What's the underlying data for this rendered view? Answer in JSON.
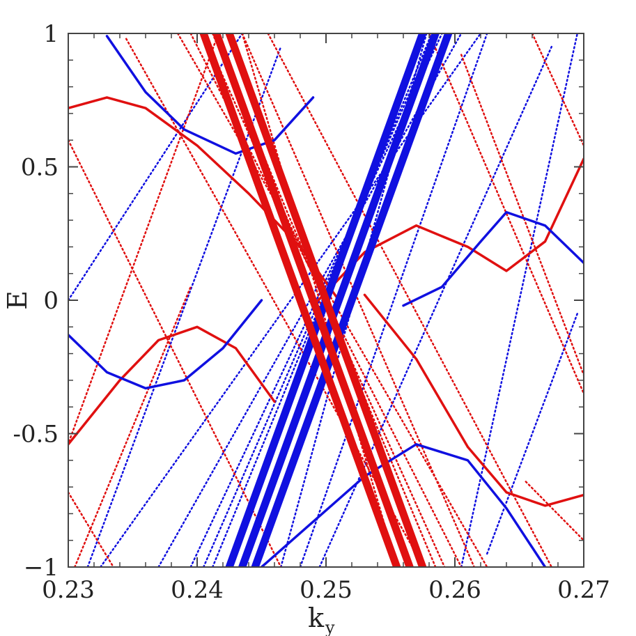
{
  "chart_data": {
    "type": "line",
    "title": "",
    "xlabel": "k",
    "xlabel_sub": "y",
    "ylabel": "E",
    "xlim": [
      0.23,
      0.27
    ],
    "ylim": [
      -1,
      1
    ],
    "x_ticks": [
      0.23,
      0.24,
      0.25,
      0.26,
      0.27
    ],
    "x_tick_labels": [
      "0.23",
      "0.24",
      "0.25",
      "0.26",
      "0.27"
    ],
    "y_ticks": [
      -1,
      -0.5,
      0,
      0.5,
      1
    ],
    "y_tick_labels": [
      "−1",
      "-0.5",
      "0",
      "0.5",
      "1"
    ],
    "grid": false,
    "legend": "none",
    "colors": {
      "red": "#e01010",
      "blue": "#1010e0",
      "axis": "#444444"
    },
    "series": [
      {
        "color": "red",
        "style": "solid",
        "x": [
          0.23,
          0.233,
          0.236,
          0.24,
          0.244,
          0.248,
          0.251
        ],
        "y": [
          0.72,
          0.76,
          0.72,
          0.58,
          0.4,
          0.2,
          0.0
        ]
      },
      {
        "color": "blue",
        "style": "solid",
        "x": [
          0.233,
          0.236,
          0.239,
          0.243,
          0.246,
          0.249
        ],
        "y": [
          0.99,
          0.78,
          0.64,
          0.55,
          0.6,
          0.76
        ]
      },
      {
        "color": "red",
        "style": "solid",
        "x": [
          0.23,
          0.234,
          0.237,
          0.24,
          0.243,
          0.246
        ],
        "y": [
          -0.54,
          -0.3,
          -0.15,
          -0.1,
          -0.18,
          -0.38
        ]
      },
      {
        "color": "blue",
        "style": "solid",
        "x": [
          0.23,
          0.233,
          0.236,
          0.239,
          0.242,
          0.245
        ],
        "y": [
          -0.13,
          -0.27,
          -0.33,
          -0.3,
          -0.18,
          0.0
        ]
      },
      {
        "color": "red",
        "style": "solid",
        "x": [
          0.249,
          0.253,
          0.257,
          0.261,
          0.264,
          0.267,
          0.27
        ],
        "y": [
          -0.02,
          0.18,
          0.28,
          0.2,
          0.11,
          0.22,
          0.53
        ]
      },
      {
        "color": "blue",
        "style": "solid",
        "x": [
          0.256,
          0.259,
          0.262,
          0.264,
          0.267,
          0.27
        ],
        "y": [
          -0.02,
          0.05,
          0.22,
          0.33,
          0.28,
          0.14
        ]
      },
      {
        "color": "blue",
        "style": "solid",
        "x": [
          0.245,
          0.249,
          0.253,
          0.257,
          0.261,
          0.264,
          0.267
        ],
        "y": [
          -1.0,
          -0.83,
          -0.66,
          -0.54,
          -0.6,
          -0.78,
          -1.0
        ]
      },
      {
        "color": "red",
        "style": "solid",
        "x": [
          0.253,
          0.257,
          0.261,
          0.264,
          0.267,
          0.27
        ],
        "y": [
          0.02,
          -0.22,
          -0.55,
          -0.72,
          -0.77,
          -0.73
        ]
      },
      {
        "color": "blue",
        "style": "thick",
        "x": [
          0.2425,
          0.2575
        ],
        "y": [
          -1.0,
          1.0
        ]
      },
      {
        "color": "blue",
        "style": "thick",
        "x": [
          0.2445,
          0.2595
        ],
        "y": [
          -1.0,
          1.0
        ]
      },
      {
        "color": "blue",
        "style": "thick",
        "x": [
          0.2435,
          0.2585
        ],
        "y": [
          -1.0,
          1.0
        ]
      },
      {
        "color": "red",
        "style": "thick",
        "x": [
          0.2425,
          0.2575
        ],
        "y": [
          1.0,
          -1.0
        ]
      },
      {
        "color": "red",
        "style": "thick",
        "x": [
          0.2405,
          0.2555
        ],
        "y": [
          1.0,
          -1.0
        ]
      },
      {
        "color": "red",
        "style": "thick",
        "x": [
          0.2415,
          0.2565
        ],
        "y": [
          1.0,
          -1.0
        ]
      },
      {
        "color": "blue",
        "style": "dotted",
        "x": [
          0.2325,
          0.262
        ],
        "y": [
          -1.0,
          1.0
        ]
      },
      {
        "color": "blue",
        "style": "dotted",
        "x": [
          0.237,
          0.2605
        ],
        "y": [
          -1.0,
          1.0
        ]
      },
      {
        "color": "blue",
        "style": "dotted",
        "x": [
          0.2395,
          0.259
        ],
        "y": [
          -1.0,
          1.0
        ]
      },
      {
        "color": "blue",
        "style": "dotted",
        "x": [
          0.2405,
          0.2585
        ],
        "y": [
          -1.0,
          1.0
        ]
      },
      {
        "color": "blue",
        "style": "dotted",
        "x": [
          0.2412,
          0.2582
        ],
        "y": [
          -1.0,
          1.0
        ]
      },
      {
        "color": "blue",
        "style": "dotted",
        "x": [
          0.2465,
          0.2578
        ],
        "y": [
          -1.0,
          1.0
        ]
      },
      {
        "color": "blue",
        "style": "dotted",
        "x": [
          0.248,
          0.2625
        ],
        "y": [
          -1.0,
          1.0
        ]
      },
      {
        "color": "blue",
        "style": "dotted",
        "x": [
          0.2495,
          0.2675
        ],
        "y": [
          -1.0,
          0.95
        ]
      },
      {
        "color": "blue",
        "style": "dotted",
        "x": [
          0.23,
          0.2435
        ],
        "y": [
          0.0,
          1.0
        ]
      },
      {
        "color": "blue",
        "style": "dotted",
        "x": [
          0.2315,
          0.2465
        ],
        "y": [
          -1.0,
          0.95
        ]
      },
      {
        "color": "blue",
        "style": "dotted",
        "x": [
          0.2605,
          0.2695
        ],
        "y": [
          -1.0,
          1.0
        ]
      },
      {
        "color": "blue",
        "style": "dotted",
        "x": [
          0.2625,
          0.2695
        ],
        "y": [
          -0.95,
          -0.05
        ]
      },
      {
        "color": "red",
        "style": "dotted",
        "x": [
          0.2385,
          0.2625
        ],
        "y": [
          1.0,
          -1.0
        ]
      },
      {
        "color": "red",
        "style": "dotted",
        "x": [
          0.2395,
          0.2605
        ],
        "y": [
          1.0,
          -1.0
        ]
      },
      {
        "color": "red",
        "style": "dotted",
        "x": [
          0.2405,
          0.2592
        ],
        "y": [
          1.0,
          -1.0
        ]
      },
      {
        "color": "red",
        "style": "dotted",
        "x": [
          0.2412,
          0.2585
        ],
        "y": [
          1.0,
          -1.0
        ]
      },
      {
        "color": "red",
        "style": "dotted",
        "x": [
          0.2435,
          0.2555
        ],
        "y": [
          1.0,
          -1.0
        ]
      },
      {
        "color": "red",
        "style": "dotted",
        "x": [
          0.2435,
          0.2615
        ],
        "y": [
          1.0,
          -1.0
        ]
      },
      {
        "color": "red",
        "style": "dotted",
        "x": [
          0.2455,
          0.2675
        ],
        "y": [
          1.0,
          -1.0
        ]
      },
      {
        "color": "red",
        "style": "dotted",
        "x": [
          0.23,
          0.2465
        ],
        "y": [
          0.6,
          -1.0
        ]
      },
      {
        "color": "red",
        "style": "dotted",
        "x": [
          0.23,
          0.2335
        ],
        "y": [
          -0.72,
          -1.0
        ]
      },
      {
        "color": "red",
        "style": "dotted",
        "x": [
          0.2345,
          0.257
        ],
        "y": [
          0.98,
          -0.95
        ]
      },
      {
        "color": "red",
        "style": "dotted",
        "x": [
          0.2265,
          0.2415
        ],
        "y": [
          -1.0,
          0.98
        ]
      },
      {
        "color": "red",
        "style": "dotted",
        "x": [
          0.2305,
          0.2395
        ],
        "y": [
          -1.0,
          0.05
        ]
      },
      {
        "color": "red",
        "style": "dotted",
        "x": [
          0.258,
          0.27
        ],
        "y": [
          1.0,
          -0.35
        ]
      },
      {
        "color": "red",
        "style": "dotted",
        "x": [
          0.2605,
          0.27
        ],
        "y": [
          0.92,
          -0.28
        ]
      },
      {
        "color": "red",
        "style": "dotted",
        "x": [
          0.266,
          0.27
        ],
        "y": [
          1.0,
          0.58
        ]
      },
      {
        "color": "red",
        "style": "dotted",
        "x": [
          0.2655,
          0.27
        ],
        "y": [
          -0.68,
          -0.9
        ]
      }
    ]
  }
}
